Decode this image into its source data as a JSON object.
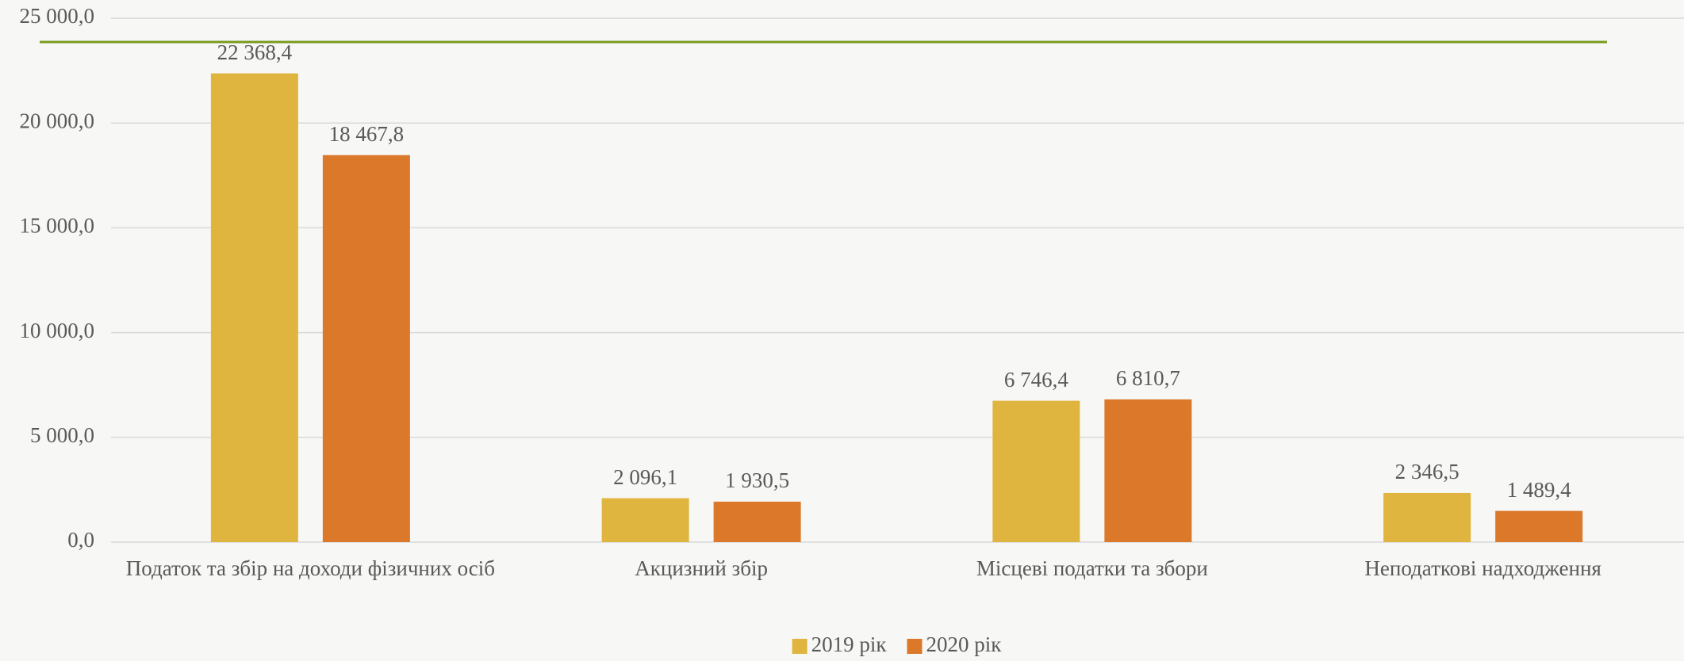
{
  "chart_data": {
    "type": "bar",
    "categories": [
      "Податок та збір на доходи фізичних осіб",
      "Акцизний збір",
      "Місцеві податки та збори",
      "Неподаткові надходження"
    ],
    "series": [
      {
        "name": "2019 рік",
        "color": "#e0b53f",
        "values": [
          22368.4,
          2096.1,
          6746.4,
          2346.5
        ],
        "value_labels": [
          "22 368,4",
          "2 096,1",
          "6 746,4",
          "2 346,5"
        ]
      },
      {
        "name": "2020 рік",
        "color": "#db782a",
        "values": [
          18467.8,
          1930.5,
          6810.7,
          1489.4
        ],
        "value_labels": [
          "18 467,8",
          "1 930,5",
          "6 810,7",
          "1 489,4"
        ]
      }
    ],
    "ylim": [
      0,
      25000
    ],
    "yticks": [
      {
        "value": 0,
        "label": "0,0"
      },
      {
        "value": 5000,
        "label": "5 000,0"
      },
      {
        "value": 10000,
        "label": "10 000,0"
      },
      {
        "value": 15000,
        "label": "15 000,0"
      },
      {
        "value": 20000,
        "label": "20 000,0"
      },
      {
        "value": 25000,
        "label": "25 000,0"
      }
    ],
    "grid": true,
    "legend": "bottom"
  }
}
